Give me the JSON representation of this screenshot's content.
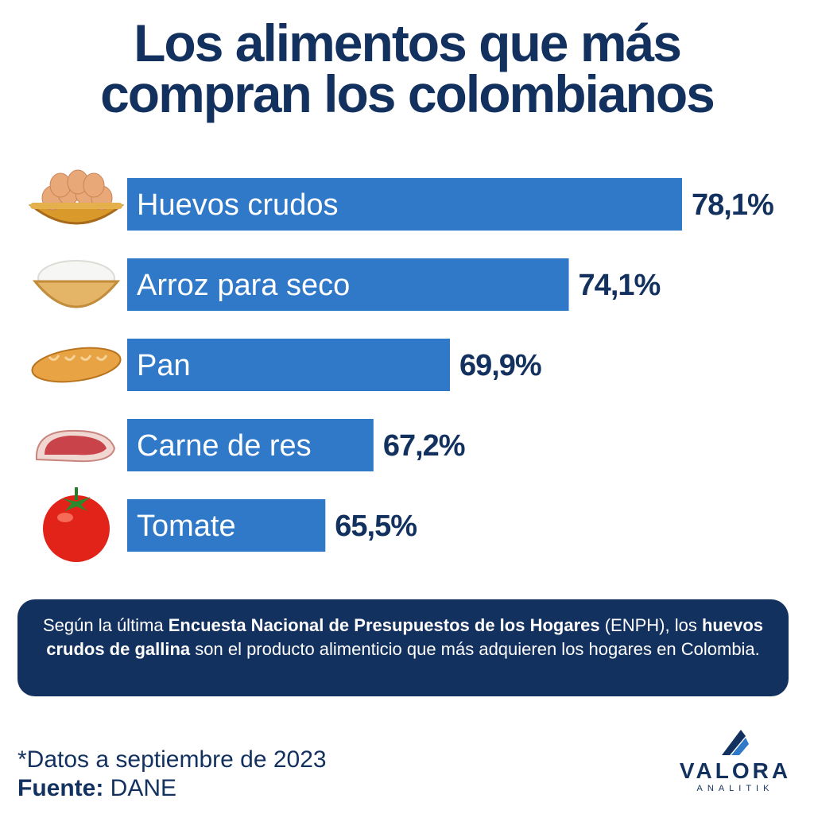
{
  "title": {
    "line1": "Los alimentos que más",
    "line2": "compran los colombianos"
  },
  "chart_data": {
    "type": "bar",
    "orientation": "horizontal",
    "categories": [
      "Huevos crudos",
      "Arroz para seco",
      "Pan",
      "Carne de res",
      "Tomate"
    ],
    "values": [
      78.1,
      74.1,
      69.9,
      67.2,
      65.5
    ],
    "value_labels": [
      "78,1%",
      "74,1%",
      "69,9%",
      "67,2%",
      "65,5%"
    ],
    "unit": "%",
    "bar_color": "#2f79c8",
    "text_color": "#13315f",
    "icons": [
      "egg-basket-icon",
      "rice-bowl-icon",
      "bread-icon",
      "beef-icon",
      "tomato-icon"
    ],
    "grid": false,
    "legend": "none"
  },
  "note": {
    "part1": "Según la última ",
    "bold1": "Encuesta Nacional de Presupuestos de los Hogares",
    "part2": " (ENPH), los ",
    "bold2": "huevos crudos de gallina",
    "part3": " son el producto alimenticio que más adquieren los hogares en Colombia."
  },
  "footer": {
    "date_note": "*Datos a septiembre de 2023",
    "source_label": "Fuente:",
    "source_value": " DANE"
  },
  "logo": {
    "word": "VALORA",
    "sub": "ANALITIK"
  },
  "colors": {
    "navy": "#13315f",
    "bar": "#2f79c8"
  }
}
